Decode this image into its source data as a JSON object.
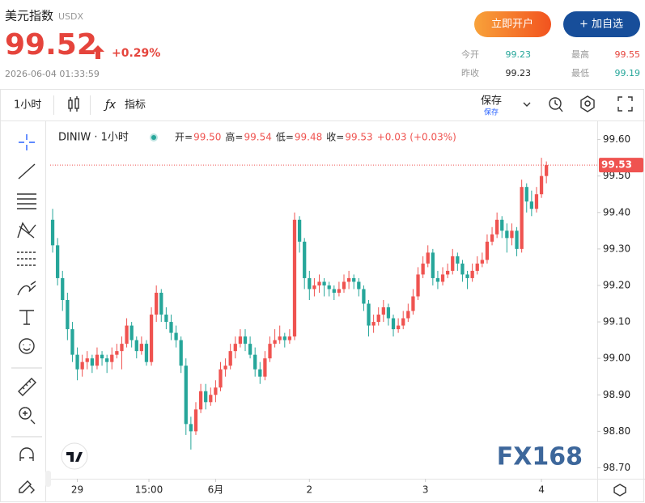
{
  "header": {
    "name": "美元指数",
    "code": "USDX",
    "price": "99.52",
    "change": "+0.29%",
    "time": "2026-06-04 01:33:59",
    "buttons": [
      "立即开户",
      "+ 加自选"
    ],
    "stats": [
      {
        "label": "今开",
        "value": "99.23"
      },
      {
        "label": "最高",
        "value": "99.55"
      },
      {
        "label": "昨收",
        "value": "99.23"
      },
      {
        "label": "最低",
        "value": "99.19"
      }
    ]
  },
  "toolbar": {
    "interval": "1小时",
    "indicators": "指标",
    "save": "保存",
    "save_sub": "保存"
  },
  "chart_data": {
    "type": "candlestick",
    "title": "DINIW · 1小时",
    "ohlc": [
      {
        "label": "开=",
        "value": "99.50"
      },
      {
        "label": "高=",
        "value": "99.54"
      },
      {
        "label": "低=",
        "value": "99.48"
      },
      {
        "label": "收=",
        "value": "99.53"
      }
    ],
    "change": "+0.03 (+0.03%)",
    "up_color": "#ef5350",
    "down_color": "#26a69a",
    "last_price": {
      "value": 99.53,
      "label": "99.53"
    },
    "watermark": "FX168",
    "xlim": [
      -0.5,
      110.3
    ],
    "xticks": [
      {
        "value": 5,
        "label": "29"
      },
      {
        "value": 19.5,
        "label": "15:00"
      },
      {
        "value": 33,
        "label": "6月"
      },
      {
        "value": 52,
        "label": "2"
      },
      {
        "value": 75.5,
        "label": "3"
      },
      {
        "value": 99,
        "label": "4"
      }
    ],
    "ylim": [
      98.67,
      99.65
    ],
    "yticks": [
      {
        "value": 99.6,
        "label": "99.60"
      },
      {
        "value": 99.5,
        "label": "99.50"
      },
      {
        "value": 99.4,
        "label": "99.40"
      },
      {
        "value": 99.3,
        "label": "99.30"
      },
      {
        "value": 99.2,
        "label": "99.20"
      },
      {
        "value": 99.1,
        "label": "99.10"
      },
      {
        "value": 99.0,
        "label": "99.00"
      },
      {
        "value": 98.9,
        "label": "98.90"
      },
      {
        "value": 98.8,
        "label": "98.80"
      },
      {
        "value": 98.7,
        "label": "98.70"
      }
    ],
    "candles": [
      [
        99.38,
        99.41,
        99.29,
        99.31
      ],
      [
        99.31,
        99.33,
        99.2,
        99.22
      ],
      [
        99.22,
        99.24,
        99.13,
        99.16
      ],
      [
        99.16,
        99.18,
        99.05,
        99.08
      ],
      [
        99.08,
        99.1,
        98.99,
        99.01
      ],
      [
        99.01,
        99.03,
        98.94,
        98.97
      ],
      [
        98.97,
        99.01,
        98.95,
        98.99
      ],
      [
        98.99,
        99.02,
        98.97,
        99.0
      ],
      [
        99.0,
        99.01,
        98.96,
        98.98
      ],
      [
        98.98,
        99.03,
        98.97,
        99.01
      ],
      [
        99.01,
        99.02,
        98.98,
        99.0
      ],
      [
        99.0,
        99.01,
        98.96,
        98.99
      ],
      [
        98.99,
        99.03,
        98.97,
        99.01
      ],
      [
        99.01,
        99.04,
        99.0,
        99.02
      ],
      [
        99.02,
        99.06,
        98.97,
        99.04
      ],
      [
        99.04,
        99.11,
        99.03,
        99.09
      ],
      [
        99.09,
        99.1,
        99.03,
        99.05
      ],
      [
        99.05,
        99.06,
        99.0,
        99.02
      ],
      [
        99.02,
        99.06,
        99.01,
        99.04
      ],
      [
        99.04,
        99.05,
        98.98,
        98.99
      ],
      [
        98.99,
        99.14,
        98.98,
        99.12
      ],
      [
        99.12,
        99.2,
        99.1,
        99.18
      ],
      [
        99.18,
        99.19,
        99.1,
        99.12
      ],
      [
        99.12,
        99.14,
        99.08,
        99.1
      ],
      [
        99.1,
        99.12,
        99.05,
        99.07
      ],
      [
        99.07,
        99.09,
        99.03,
        99.05
      ],
      [
        99.05,
        99.06,
        98.96,
        98.98
      ],
      [
        98.98,
        99.0,
        98.79,
        98.82
      ],
      [
        98.82,
        98.84,
        98.75,
        98.8
      ],
      [
        98.8,
        98.88,
        98.79,
        98.86
      ],
      [
        98.86,
        98.93,
        98.85,
        98.91
      ],
      [
        98.91,
        98.93,
        98.86,
        98.88
      ],
      [
        98.88,
        98.92,
        98.87,
        98.9
      ],
      [
        98.9,
        98.94,
        98.88,
        98.92
      ],
      [
        98.92,
        98.99,
        98.91,
        98.97
      ],
      [
        98.97,
        99.0,
        98.95,
        98.98
      ],
      [
        98.98,
        99.04,
        98.97,
        99.02
      ],
      [
        99.02,
        99.06,
        99.0,
        99.04
      ],
      [
        99.04,
        99.08,
        99.03,
        99.06
      ],
      [
        99.06,
        99.08,
        99.02,
        99.04
      ],
      [
        99.04,
        99.06,
        99.0,
        99.01
      ],
      [
        99.01,
        99.03,
        98.95,
        98.97
      ],
      [
        98.97,
        98.99,
        98.93,
        98.95
      ],
      [
        98.95,
        99.02,
        98.94,
        99.0
      ],
      [
        99.0,
        99.06,
        98.99,
        99.04
      ],
      [
        99.04,
        99.08,
        99.03,
        99.05
      ],
      [
        99.05,
        99.09,
        99.04,
        99.06
      ],
      [
        99.06,
        99.07,
        99.03,
        99.05
      ],
      [
        99.05,
        99.08,
        99.04,
        99.06
      ],
      [
        99.06,
        99.4,
        99.05,
        99.38
      ],
      [
        99.38,
        99.39,
        99.29,
        99.32
      ],
      [
        99.32,
        99.33,
        99.19,
        99.22
      ],
      [
        99.22,
        99.24,
        99.16,
        99.19
      ],
      [
        99.19,
        99.22,
        99.17,
        99.2
      ],
      [
        99.2,
        99.23,
        99.18,
        99.21
      ],
      [
        99.21,
        99.22,
        99.17,
        99.2
      ],
      [
        99.2,
        99.21,
        99.17,
        99.19
      ],
      [
        99.19,
        99.2,
        99.16,
        99.18
      ],
      [
        99.18,
        99.21,
        99.17,
        99.19
      ],
      [
        99.19,
        99.23,
        99.18,
        99.21
      ],
      [
        99.21,
        99.24,
        99.19,
        99.22
      ],
      [
        99.22,
        99.23,
        99.19,
        99.21
      ],
      [
        99.21,
        99.22,
        99.17,
        99.19
      ],
      [
        99.19,
        99.2,
        99.13,
        99.15
      ],
      [
        99.15,
        99.16,
        99.06,
        99.09
      ],
      [
        99.09,
        99.12,
        99.07,
        99.1
      ],
      [
        99.1,
        99.14,
        99.09,
        99.12
      ],
      [
        99.12,
        99.16,
        99.1,
        99.14
      ],
      [
        99.14,
        99.15,
        99.09,
        99.11
      ],
      [
        99.11,
        99.12,
        99.06,
        99.08
      ],
      [
        99.08,
        99.11,
        99.07,
        99.09
      ],
      [
        99.09,
        99.13,
        99.08,
        99.11
      ],
      [
        99.11,
        99.15,
        99.1,
        99.13
      ],
      [
        99.13,
        99.19,
        99.12,
        99.17
      ],
      [
        99.17,
        99.25,
        99.16,
        99.23
      ],
      [
        99.23,
        99.28,
        99.22,
        99.26
      ],
      [
        99.26,
        99.31,
        99.25,
        99.29
      ],
      [
        99.29,
        99.3,
        99.2,
        99.22
      ],
      [
        99.22,
        99.24,
        99.19,
        99.21
      ],
      [
        99.21,
        99.25,
        99.2,
        99.23
      ],
      [
        99.23,
        99.26,
        99.22,
        99.24
      ],
      [
        99.24,
        99.3,
        99.23,
        99.28
      ],
      [
        99.28,
        99.29,
        99.24,
        99.26
      ],
      [
        99.26,
        99.27,
        99.21,
        99.23
      ],
      [
        99.23,
        99.24,
        99.19,
        99.22
      ],
      [
        99.22,
        99.26,
        99.21,
        99.24
      ],
      [
        99.24,
        99.28,
        99.23,
        99.26
      ],
      [
        99.26,
        99.29,
        99.25,
        99.27
      ],
      [
        99.27,
        99.34,
        99.26,
        99.32
      ],
      [
        99.32,
        99.36,
        99.31,
        99.34
      ],
      [
        99.34,
        99.4,
        99.33,
        99.38
      ],
      [
        99.38,
        99.39,
        99.33,
        99.35
      ],
      [
        99.35,
        99.37,
        99.29,
        99.33
      ],
      [
        99.33,
        99.37,
        99.31,
        99.35
      ],
      [
        99.35,
        99.36,
        99.28,
        99.3
      ],
      [
        99.3,
        99.49,
        99.29,
        99.47
      ],
      [
        99.47,
        99.48,
        99.4,
        99.43
      ],
      [
        99.43,
        99.46,
        99.39,
        99.41
      ],
      [
        99.41,
        99.47,
        99.4,
        99.45
      ],
      [
        99.45,
        99.55,
        99.44,
        99.5
      ],
      [
        99.5,
        99.54,
        99.48,
        99.53
      ]
    ]
  }
}
